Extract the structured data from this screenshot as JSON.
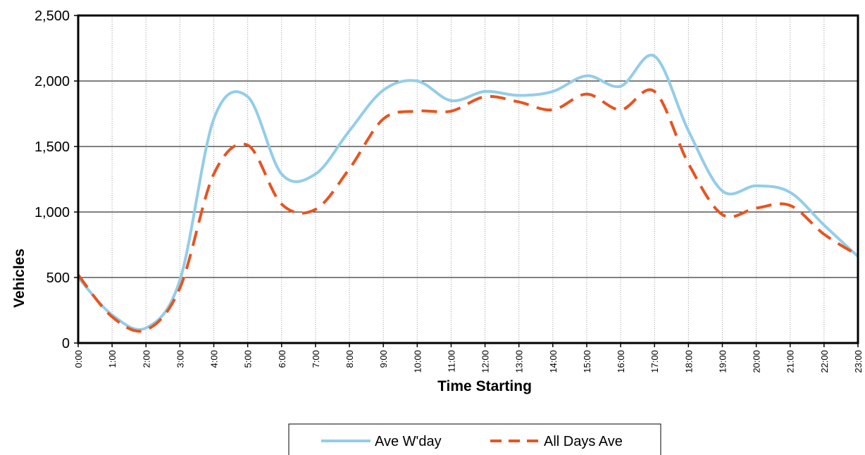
{
  "chart_data": {
    "type": "line",
    "title": "",
    "xlabel": "Time Starting",
    "ylabel": "Vehicles",
    "ylim": [
      0,
      2500
    ],
    "y_ticks": [
      "0",
      "500",
      "1,000",
      "1,500",
      "2,000",
      "2,500"
    ],
    "grid": "horizontal major, vertical minor dotted",
    "legend_position": "bottom",
    "categories": [
      "0:00",
      "1:00",
      "2:00",
      "3:00",
      "4:00",
      "5:00",
      "6:00",
      "7:00",
      "8:00",
      "9:00",
      "10:00",
      "11:00",
      "12:00",
      "13:00",
      "14:00",
      "15:00",
      "16:00",
      "17:00",
      "18:00",
      "19:00",
      "20:00",
      "21:00",
      "22:00",
      "23:00"
    ],
    "series": [
      {
        "name": "Ave W'day",
        "color": "#93cde8",
        "style": "solid",
        "values": [
          500,
          215,
          115,
          480,
          1710,
          1880,
          1290,
          1290,
          1620,
          1930,
          2000,
          1850,
          1920,
          1890,
          1920,
          2040,
          1960,
          2190,
          1620,
          1160,
          1200,
          1150,
          900,
          660
        ]
      },
      {
        "name": "All Days Ave",
        "color": "#e8531f",
        "style": "dashed",
        "values": [
          520,
          200,
          100,
          420,
          1290,
          1510,
          1060,
          1020,
          1330,
          1710,
          1770,
          1770,
          1880,
          1840,
          1780,
          1900,
          1780,
          1920,
          1370,
          980,
          1030,
          1050,
          830,
          670
        ]
      }
    ]
  }
}
